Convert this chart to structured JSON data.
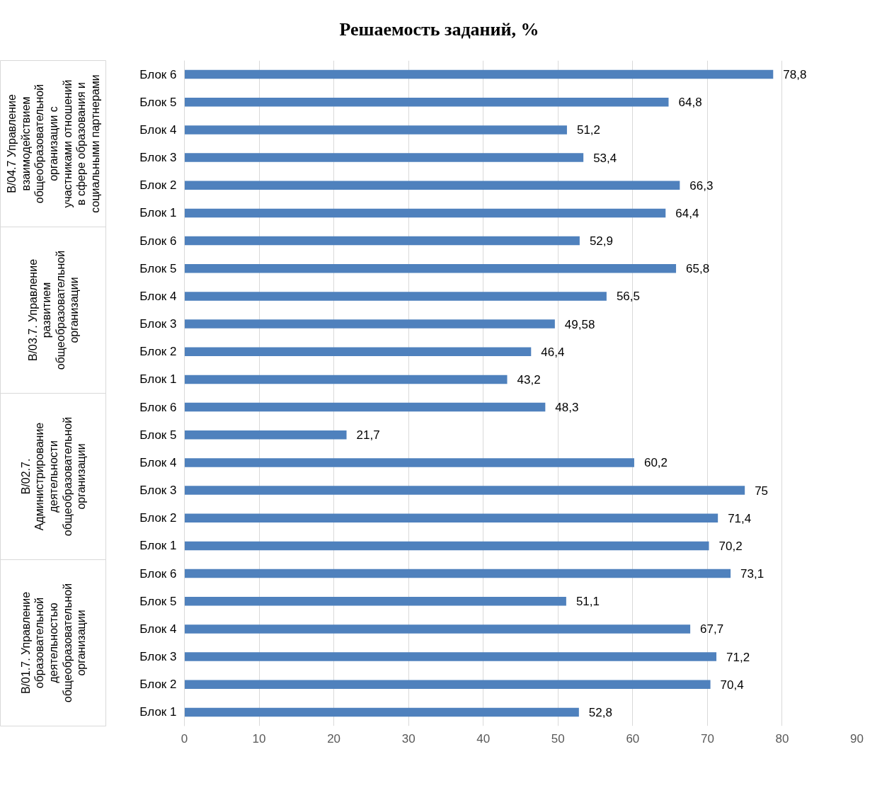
{
  "chart_data": {
    "type": "bar",
    "orientation": "horizontal",
    "title": "Решаемость заданий, %",
    "categories": [
      "Блок 6",
      "Блок 5",
      "Блок 4",
      "Блок 3",
      "Блок 2",
      "Блок 1",
      "Блок 6",
      "Блок 5",
      "Блок 4",
      "Блок 3",
      "Блок 2",
      "Блок 1",
      "Блок 6",
      "Блок 5",
      "Блок 4",
      "Блок 3",
      "Блок 2",
      "Блок 1",
      "Блок 6",
      "Блок 5",
      "Блок 4",
      "Блок 3",
      "Блок 2",
      "Блок 1"
    ],
    "values": [
      78.8,
      64.8,
      51.2,
      53.4,
      66.3,
      64.4,
      52.9,
      65.8,
      56.5,
      49.58,
      46.4,
      43.2,
      48.3,
      21.7,
      60.2,
      75,
      71.4,
      70.2,
      73.1,
      51.1,
      67.7,
      71.2,
      70.4,
      52.8
    ],
    "value_labels": [
      "78,8",
      "64,8",
      "51,2",
      "53,4",
      "66,3",
      "64,4",
      "52,9",
      "65,8",
      "56,5",
      "49,58",
      "46,4",
      "43,2",
      "48,3",
      "21,7",
      "60,2",
      "75",
      "71,4",
      "70,2",
      "73,1",
      "51,1",
      "67,7",
      "71,2",
      "70,4",
      "52,8"
    ],
    "color": "#4f81bd",
    "xlim": [
      0,
      90
    ],
    "xticks": [
      0,
      10,
      20,
      30,
      40,
      50,
      60,
      70,
      80,
      90
    ],
    "grid": "x",
    "annotations": [
      "В/04.7 Управление взаимодействием общеобразовательной организации с участниками отношений в сфере образования и социальными партнерами",
      "В/03.7. Управление развитием общеобразовательной организации",
      "В/02.7. Администрирование деятельности общеобразовательной организации",
      "В/01.7. Управление образовательной деятельностью общеобразовательной организации"
    ]
  }
}
